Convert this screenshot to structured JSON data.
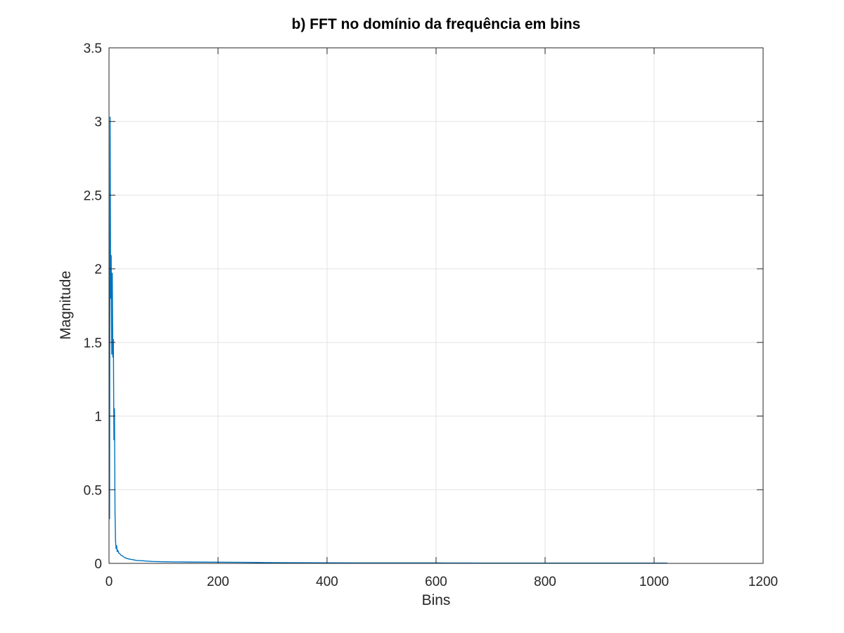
{
  "chart_data": {
    "type": "line",
    "title": "b) FFT no domínio da frequência em bins",
    "xlabel": "Bins",
    "ylabel": "Magnitude",
    "xlim": [
      0,
      1200
    ],
    "ylim": [
      0,
      3.5
    ],
    "xticks": [
      0,
      200,
      400,
      600,
      800,
      1000,
      1200
    ],
    "xtick_labels": [
      "0",
      "200",
      "400",
      "600",
      "800",
      "1000",
      "1200"
    ],
    "yticks": [
      0,
      0.5,
      1,
      1.5,
      2,
      2.5,
      3,
      3.5
    ],
    "ytick_labels": [
      "0",
      "0.5",
      "1",
      "1.5",
      "2",
      "2.5",
      "3",
      "3.5"
    ],
    "grid": true,
    "line_color": "#0072bd",
    "series": [
      {
        "x": [
          1,
          2,
          3,
          4,
          5,
          6,
          7,
          8,
          9,
          10,
          11,
          12,
          13,
          14,
          15,
          16,
          18,
          20,
          22,
          25,
          28,
          32,
          36,
          40,
          45,
          50,
          60,
          70,
          80,
          100,
          120,
          150,
          200,
          250,
          275,
          300,
          400,
          500,
          600,
          700,
          800,
          900,
          1000,
          1024
        ],
        "y": [
          0.3,
          3.03,
          1.8,
          2.09,
          1.42,
          1.97,
          1.4,
          1.52,
          0.84,
          1.05,
          0.35,
          0.15,
          0.1,
          0.12,
          0.08,
          0.09,
          0.07,
          0.065,
          0.055,
          0.05,
          0.04,
          0.035,
          0.03,
          0.027,
          0.024,
          0.02,
          0.018,
          0.015,
          0.013,
          0.011,
          0.01,
          0.009,
          0.008,
          0.007,
          0.006,
          0.005,
          0.004,
          0.003,
          0.003,
          0.002,
          0.002,
          0.002,
          0.002,
          0.002
        ]
      }
    ]
  }
}
